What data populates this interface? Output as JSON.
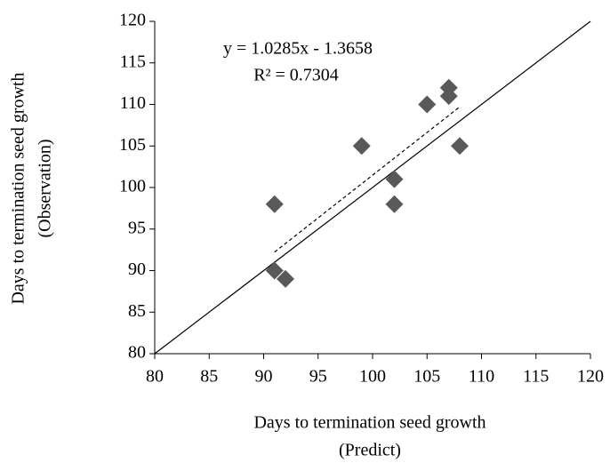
{
  "chart_data": {
    "type": "scatter",
    "x_label": [
      "Days to termination seed growth",
      "(Predict)"
    ],
    "y_label": [
      "Days to termination seed growth",
      "(Observation)"
    ],
    "annotations": [
      "y = 1.0285x - 1.3658",
      "R² = 0.7304"
    ],
    "series": [
      {
        "color": "#595959",
        "x": [
          91,
          91,
          92,
          99,
          102,
          102,
          105,
          107,
          107,
          108
        ],
        "values": [
          98,
          90,
          89,
          105,
          101,
          98,
          110,
          112,
          111,
          105
        ]
      }
    ],
    "trendline": {
      "x": [
        91,
        108
      ],
      "values": [
        92.23,
        109.71
      ],
      "color": "#000000"
    },
    "reference_line": {
      "x": [
        80,
        120
      ],
      "values": [
        80,
        120
      ],
      "color": "#000000"
    },
    "xlim": [
      80,
      120
    ],
    "xticks": [
      80,
      85,
      90,
      95,
      100,
      105,
      110,
      115,
      120
    ],
    "ylim": [
      80,
      120
    ],
    "yticks": [
      80,
      85,
      90,
      95,
      100,
      105,
      110,
      115,
      120
    ],
    "grid": false
  }
}
